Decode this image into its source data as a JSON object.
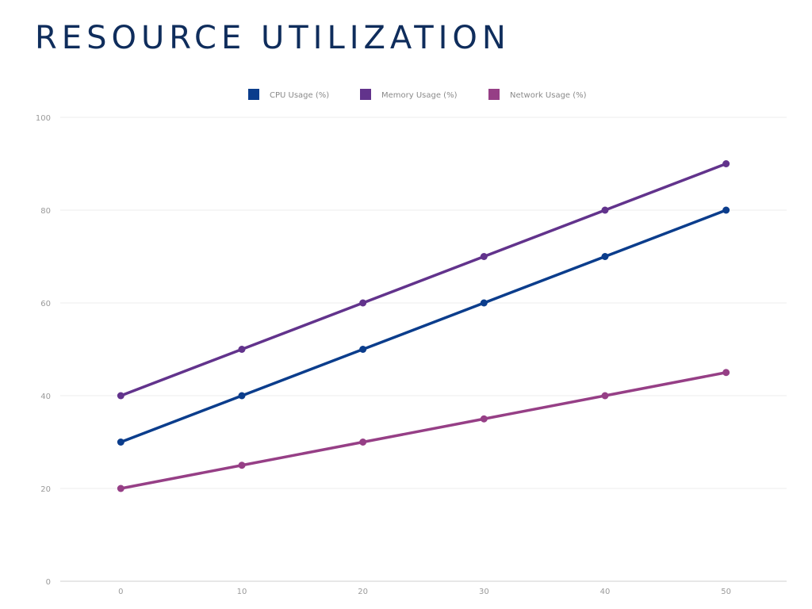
{
  "page": {
    "title": "RESOURCE UTILIZATION"
  },
  "chart_data": {
    "type": "line",
    "title": "RESOURCE UTILIZATION",
    "xlabel": "",
    "ylabel": "",
    "x": [
      0,
      10,
      20,
      30,
      40,
      50
    ],
    "xlim": [
      -5,
      55
    ],
    "ylim": [
      0,
      100
    ],
    "x_ticks": [
      0,
      10,
      20,
      30,
      40,
      50
    ],
    "y_ticks": [
      0,
      20,
      40,
      60,
      80,
      100
    ],
    "grid": true,
    "legend_position": "top-center",
    "series": [
      {
        "name": "CPU Usage (%)",
        "color": "#0b3d8c",
        "values": [
          30,
          40,
          50,
          60,
          70,
          80
        ]
      },
      {
        "name": "Memory Usage (%)",
        "color": "#62338c",
        "values": [
          40,
          50,
          60,
          70,
          80,
          90
        ]
      },
      {
        "name": "Network Usage (%)",
        "color": "#963f86",
        "values": [
          20,
          25,
          30,
          35,
          40,
          45
        ]
      }
    ]
  }
}
